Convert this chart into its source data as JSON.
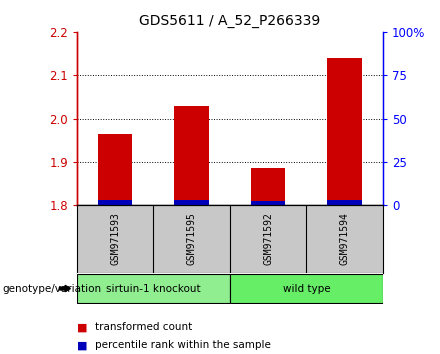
{
  "title": "GDS5611 / A_52_P266339",
  "samples": [
    "GSM971593",
    "GSM971595",
    "GSM971592",
    "GSM971594"
  ],
  "group_assignments": [
    0,
    0,
    1,
    1
  ],
  "group_labels": [
    "sirtuin-1 knockout",
    "wild type"
  ],
  "group_colors": [
    "#90EE90",
    "#66EE66"
  ],
  "bar_bottom": 1.8,
  "transformed_counts": [
    1.965,
    2.03,
    1.885,
    2.14
  ],
  "percentile_ranks": [
    7,
    8,
    6,
    8
  ],
  "ylim_left": [
    1.8,
    2.2
  ],
  "ylim_right": [
    0,
    100
  ],
  "yticks_left": [
    1.8,
    1.9,
    2.0,
    2.1,
    2.2
  ],
  "yticks_right": [
    0,
    25,
    50,
    75,
    100
  ],
  "red_color": "#CC0000",
  "blue_color": "#0000BB",
  "bar_width": 0.45,
  "bg_sample": "#C8C8C8",
  "legend_red": "transformed count",
  "legend_blue": "percentile rank within the sample",
  "genotype_label": "genotype/variation",
  "title_fontsize": 10,
  "tick_fontsize": 8.5
}
